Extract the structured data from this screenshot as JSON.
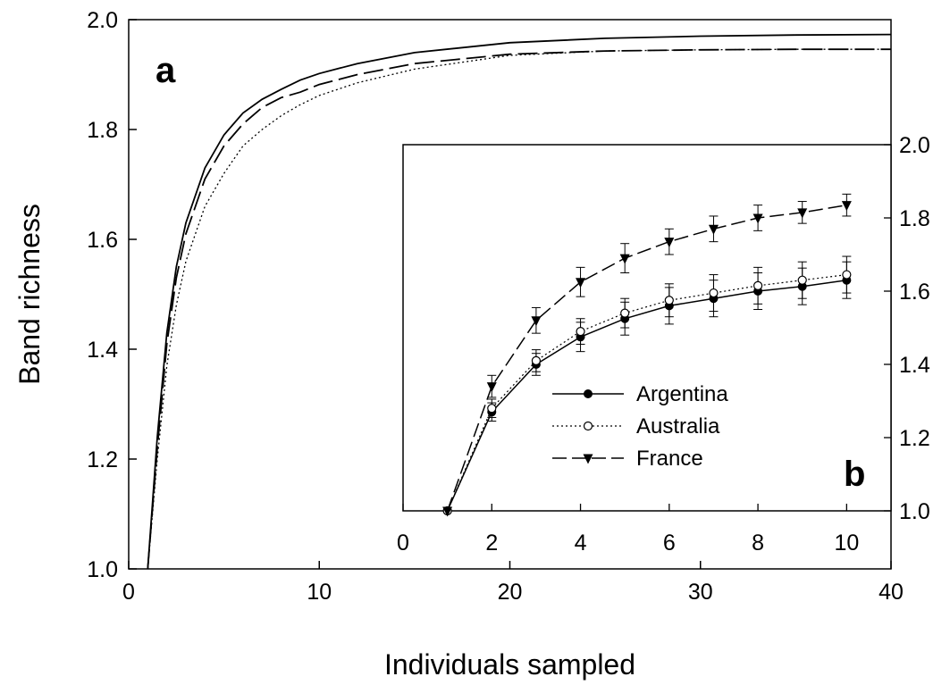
{
  "chart_data": [
    {
      "type": "line",
      "panel_label": "a",
      "xlabel": "Individuals sampled",
      "ylabel": "Band richness",
      "xlim": [
        0,
        40
      ],
      "ylim": [
        1.0,
        2.0
      ],
      "x_ticks": [
        "0",
        "10",
        "20",
        "30",
        "40"
      ],
      "y_ticks": [
        "1.0",
        "1.2",
        "1.4",
        "1.6",
        "1.8",
        "2.0"
      ],
      "grid": false,
      "series": [
        {
          "line_style": "solid",
          "x": [
            1,
            1.5,
            2,
            2.5,
            3,
            4,
            5,
            6,
            7,
            8,
            9,
            10,
            12,
            15,
            20,
            25,
            30,
            35,
            40
          ],
          "values": [
            1.0,
            1.24,
            1.43,
            1.55,
            1.63,
            1.73,
            1.79,
            1.83,
            1.855,
            1.873,
            1.89,
            1.902,
            1.92,
            1.94,
            1.958,
            1.966,
            1.97,
            1.972,
            1.973
          ]
        },
        {
          "line_style": "dashed",
          "x": [
            1,
            1.5,
            2,
            2.5,
            3,
            4,
            5,
            6,
            7,
            8,
            9,
            10,
            12,
            15,
            20,
            25,
            30,
            35,
            40
          ],
          "values": [
            1.0,
            1.22,
            1.41,
            1.53,
            1.61,
            1.71,
            1.77,
            1.81,
            1.84,
            1.858,
            1.868,
            1.882,
            1.9,
            1.92,
            1.937,
            1.943,
            1.945,
            1.946,
            1.946
          ]
        },
        {
          "line_style": "dotted",
          "x": [
            1,
            1.5,
            2,
            2.5,
            3,
            4,
            5,
            6,
            7,
            8,
            9,
            10,
            12,
            15,
            20,
            25,
            30,
            35,
            40
          ],
          "values": [
            1.0,
            1.2,
            1.37,
            1.48,
            1.56,
            1.66,
            1.72,
            1.77,
            1.8,
            1.825,
            1.845,
            1.862,
            1.885,
            1.91,
            1.935,
            1.943,
            1.945,
            1.946,
            1.946
          ]
        }
      ]
    },
    {
      "type": "line",
      "panel_label": "b",
      "xlim": [
        0,
        11
      ],
      "ylim": [
        1.0,
        2.0
      ],
      "x_ticks": [
        "0",
        "2",
        "4",
        "6",
        "8",
        "10"
      ],
      "y_ticks": [
        "1.0",
        "1.2",
        "1.4",
        "1.6",
        "1.8",
        "2.0"
      ],
      "grid": false,
      "legend_position": "center",
      "series": [
        {
          "name": "Argentina",
          "line_style": "solid",
          "marker": "filled-circle",
          "x": [
            1,
            2,
            3,
            4,
            5,
            6,
            7,
            8,
            9,
            10
          ],
          "values": [
            1.0,
            1.27,
            1.4,
            1.475,
            1.525,
            1.56,
            1.58,
            1.6,
            1.613,
            1.63
          ],
          "errors": [
            0.0,
            0.025,
            0.03,
            0.04,
            0.045,
            0.05,
            0.05,
            0.05,
            0.05,
            0.05
          ]
        },
        {
          "name": "Australia",
          "line_style": "dotted",
          "marker": "open-circle",
          "x": [
            1,
            2,
            3,
            4,
            5,
            6,
            7,
            8,
            9,
            10
          ],
          "values": [
            1.0,
            1.28,
            1.41,
            1.49,
            1.54,
            1.575,
            1.595,
            1.615,
            1.63,
            1.645
          ],
          "errors": [
            0.0,
            0.025,
            0.03,
            0.035,
            0.04,
            0.045,
            0.05,
            0.05,
            0.05,
            0.05
          ]
        },
        {
          "name": "France",
          "line_style": "dashed",
          "marker": "filled-down-triangle",
          "x": [
            1,
            2,
            3,
            4,
            5,
            6,
            7,
            8,
            9,
            10
          ],
          "values": [
            1.0,
            1.34,
            1.52,
            1.625,
            1.69,
            1.735,
            1.77,
            1.8,
            1.815,
            1.835
          ],
          "errors": [
            0.0,
            0.03,
            0.035,
            0.04,
            0.04,
            0.035,
            0.035,
            0.035,
            0.03,
            0.03
          ]
        }
      ]
    }
  ]
}
